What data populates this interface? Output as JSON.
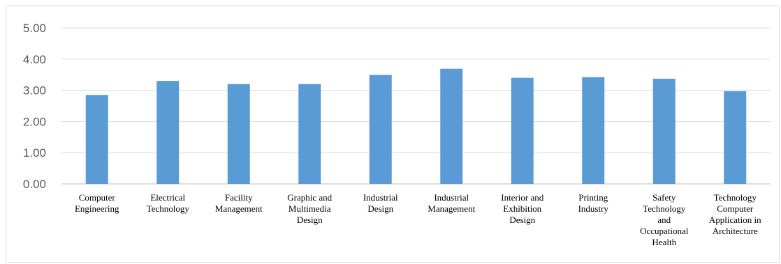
{
  "chart_data": {
    "type": "bar",
    "categories": [
      [
        "Computer",
        "Engineering"
      ],
      [
        "Electrical",
        "Technology"
      ],
      [
        "Facility",
        "Management"
      ],
      [
        "Graphic and",
        "Multimedia",
        "Design"
      ],
      [
        "Industrial",
        "Design"
      ],
      [
        "Industrial",
        "Management"
      ],
      [
        "Interior and",
        "Exhibition",
        "Design"
      ],
      [
        "Printing",
        "Industry"
      ],
      [
        "Safety",
        "Technology",
        "and",
        "Occupational",
        "Health"
      ],
      [
        "Technology",
        "Computer",
        "Application in",
        "Architecture"
      ]
    ],
    "values": [
      2.85,
      3.3,
      3.2,
      3.2,
      3.49,
      3.69,
      3.4,
      3.42,
      3.37,
      2.97
    ],
    "y_ticks": [
      "0.00",
      "1.00",
      "2.00",
      "3.00",
      "4.00",
      "5.00"
    ],
    "ylim": [
      0,
      5
    ],
    "grid": true,
    "legend": "none",
    "colors": {
      "bar": "#5b9bd5",
      "grid": "#d9d9d9",
      "axis": "#bfbfbf",
      "border": "#d9d9d9"
    }
  }
}
